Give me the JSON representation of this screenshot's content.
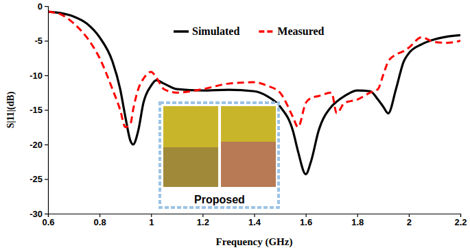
{
  "chart_data": {
    "type": "line",
    "x_label": "Frequency (GHz)",
    "y_label": "S|11|(dB)",
    "annotations": [
      "Proposed"
    ],
    "legend": "top",
    "grid": false,
    "x": [
      0.6,
      0.65,
      0.7,
      0.75,
      0.8,
      0.85,
      0.88,
      0.9,
      0.92,
      0.93,
      0.95,
      0.97,
      1.0,
      1.02,
      1.05,
      1.1,
      1.2,
      1.3,
      1.4,
      1.45,
      1.5,
      1.55,
      1.57,
      1.6,
      1.62,
      1.65,
      1.7,
      1.72,
      1.75,
      1.8,
      1.85,
      1.88,
      1.9,
      1.92,
      1.95,
      1.98,
      2.0,
      2.05,
      2.1,
      2.15,
      2.2
    ],
    "series": [
      {
        "name": "Simulated",
        "color": "#000000",
        "line_style": "solid",
        "values": [
          -0.8,
          -1.0,
          -1.5,
          -2.5,
          -4.5,
          -8,
          -12,
          -16,
          -19.5,
          -20,
          -18,
          -14,
          -11.5,
          -10.7,
          -11.2,
          -12,
          -12.2,
          -12.1,
          -12.3,
          -13,
          -14.5,
          -18,
          -21,
          -24.3,
          -22.5,
          -18,
          -14.5,
          -13.8,
          -13,
          -12.2,
          -12.3,
          -13.5,
          -14.5,
          -15.5,
          -12,
          -8,
          -6.8,
          -5.5,
          -4.8,
          -4.4,
          -4.2
        ]
      },
      {
        "name": "Measured",
        "color": "#ff0000",
        "line_style": "dashed",
        "values": [
          -0.8,
          -1.2,
          -2.5,
          -4.5,
          -7.5,
          -12,
          -15,
          -17.5,
          -17,
          -15,
          -12,
          -10.5,
          -9.5,
          -10.3,
          -12,
          -12.5,
          -12,
          -11.2,
          -11,
          -11.5,
          -12.5,
          -16,
          -17.5,
          -14,
          -13.3,
          -13,
          -12.5,
          -15.5,
          -14,
          -13.5,
          -12.5,
          -12,
          -10,
          -8,
          -7,
          -6.5,
          -6,
          -4.5,
          -5.2,
          -5.3,
          -5
        ]
      }
    ],
    "xlim": [
      0.6,
      2.2
    ],
    "xticks": [
      0.6,
      0.8,
      1,
      1.2,
      1.4,
      1.6,
      1.8,
      2,
      2.2
    ],
    "ylim": [
      -30,
      0
    ],
    "yticks": [
      -30,
      -25,
      -20,
      -15,
      -10,
      -5,
      0
    ]
  }
}
